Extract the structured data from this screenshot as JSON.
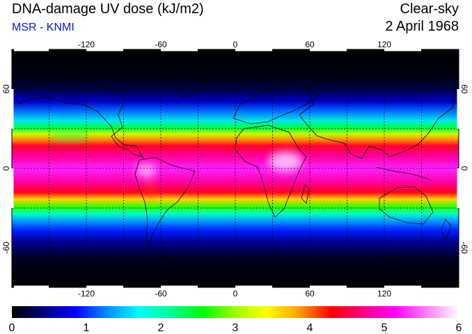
{
  "header": {
    "title": "DNA-damage UV dose (kJ/m2)",
    "subtitle": "MSR - KNMI",
    "condition": "Clear-sky",
    "date": "2 April 1968"
  },
  "map": {
    "lon_ticks": [
      "-120",
      "-60",
      "0",
      "60",
      "120"
    ],
    "lat_ticks_left": [
      "60",
      "0",
      "-60"
    ],
    "lat_ticks_right": [
      "60",
      "0",
      "-60"
    ],
    "grid": "dashed, every 30 degrees",
    "projection": "equirectangular, 180W-180E, 90S-90N"
  },
  "colorbar": {
    "labels": [
      "0",
      "1",
      "2",
      "3",
      "4",
      "5",
      "6"
    ],
    "min": 0,
    "max": 6,
    "colors": [
      "#000000",
      "#000080",
      "#0000ff",
      "#0090ff",
      "#00ffff",
      "#00ff90",
      "#00ff00",
      "#a0ff00",
      "#ffff00",
      "#ffa000",
      "#ff0000",
      "#ff0080",
      "#ff00ff",
      "#ff80ff",
      "#ffffff"
    ]
  }
}
